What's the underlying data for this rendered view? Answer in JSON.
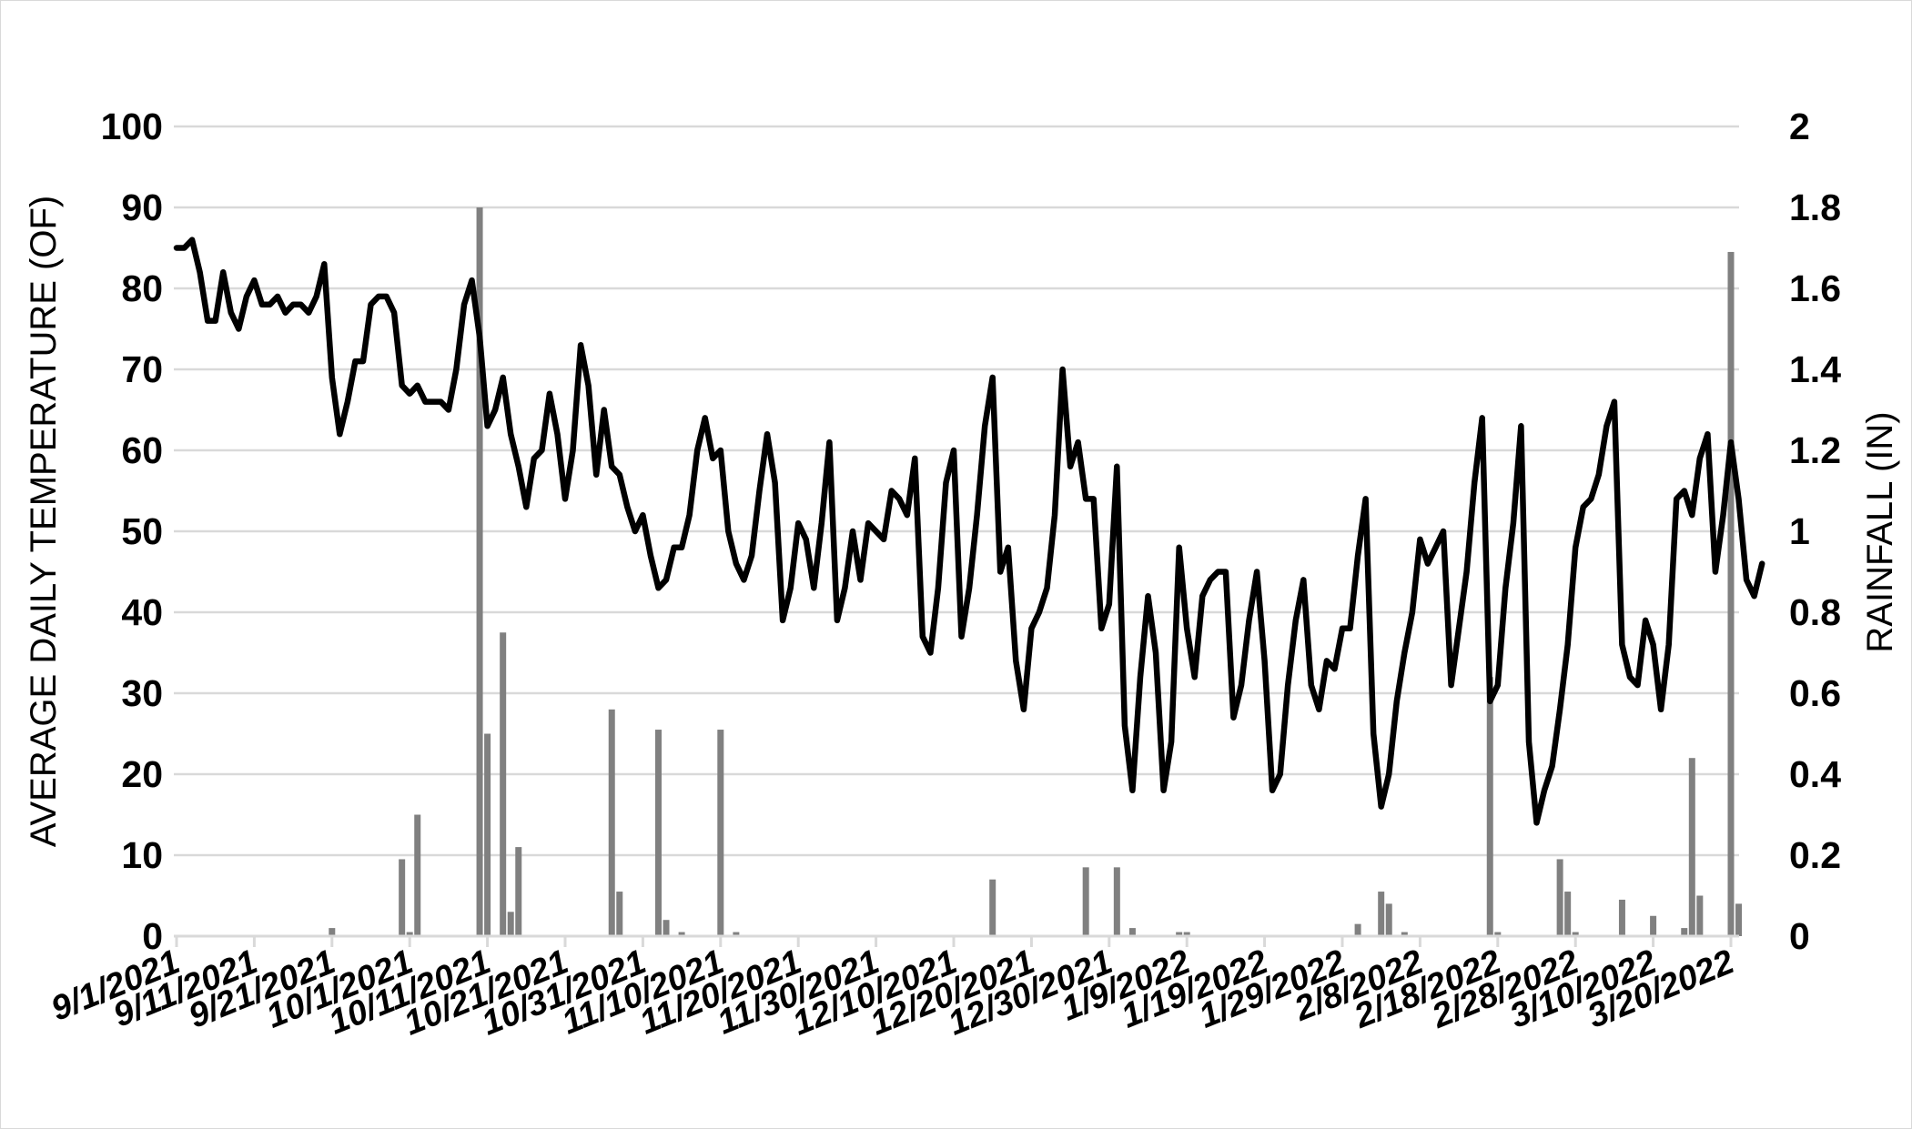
{
  "chart_data": {
    "type": "line",
    "title": "",
    "ylabel": "AVERAGE DAILY TEMPERATURE (OF)",
    "y2label": "RAINFALL (IN)",
    "ylim": [
      0,
      100
    ],
    "y2lim": [
      0,
      2
    ],
    "yticks": [
      "0",
      "10",
      "20",
      "30",
      "40",
      "50",
      "60",
      "70",
      "80",
      "90",
      "100"
    ],
    "y2ticks": [
      "0",
      "0.2",
      "0.4",
      "0.6",
      "0.8",
      "1",
      "1.2",
      "1.4",
      "1.6",
      "1.8",
      "2"
    ],
    "xticks": [
      "9/1/2021",
      "9/11/2021",
      "9/21/2021",
      "10/1/2021",
      "10/11/2021",
      "10/21/2021",
      "10/31/2021",
      "11/10/2021",
      "11/20/2021",
      "11/30/2021",
      "12/10/2021",
      "12/20/2021",
      "12/30/2021",
      "1/9/2022",
      "1/19/2022",
      "1/29/2022",
      "2/8/2022",
      "2/18/2022",
      "2/28/2022",
      "3/10/2022",
      "3/20/2022"
    ],
    "grid": true,
    "colors": {
      "temperature": "#000000",
      "rainfall": "#808080",
      "grid": "#d9d9d9"
    },
    "series": [
      {
        "type": "line",
        "axis": "left",
        "values": [
          85,
          85,
          86,
          82,
          76,
          76,
          82,
          77,
          75,
          79,
          81,
          78,
          78,
          79,
          77,
          78,
          78,
          77,
          79,
          83,
          69,
          62,
          66,
          71,
          71,
          78,
          79,
          79,
          77,
          68,
          67,
          68,
          66,
          66,
          66,
          65,
          70,
          78,
          81,
          74,
          63,
          65,
          69,
          62,
          58,
          53,
          59,
          60,
          67,
          62,
          54,
          60,
          73,
          68,
          57,
          65,
          58,
          57,
          53,
          50,
          52,
          47,
          43,
          44,
          48,
          48,
          52,
          60,
          64,
          59,
          60,
          50,
          46,
          44,
          47,
          55,
          62,
          56,
          39,
          43,
          51,
          49,
          43,
          51,
          61,
          39,
          43,
          50,
          44,
          51,
          50,
          49,
          55,
          54,
          52,
          59,
          37,
          35,
          43,
          56,
          60,
          37,
          43,
          52,
          63,
          69,
          45,
          48,
          34,
          28,
          38,
          40,
          43,
          52,
          70,
          58,
          61,
          54,
          54,
          38,
          41,
          58,
          26,
          18,
          32,
          42,
          35,
          18,
          24,
          48,
          38,
          32,
          42,
          44,
          45,
          45,
          27,
          31,
          39,
          45,
          34,
          18,
          20,
          31,
          39,
          44,
          31,
          28,
          34,
          33,
          38,
          38,
          47,
          54,
          25,
          16,
          20,
          29,
          35,
          40,
          49,
          46,
          48,
          50,
          31,
          38,
          45,
          56,
          64,
          29,
          31,
          43,
          51,
          63,
          24,
          14,
          18,
          21,
          28,
          36,
          48,
          53,
          54,
          57,
          63,
          66,
          36,
          32,
          31,
          39,
          36,
          28,
          36,
          54,
          55,
          52,
          59,
          62,
          45,
          52,
          61,
          54,
          44,
          42,
          46
        ]
      },
      {
        "type": "bar",
        "axis": "right",
        "start_day": 0,
        "points": [
          [
            20,
            0.02
          ],
          [
            29,
            0.19
          ],
          [
            30,
            0.01
          ],
          [
            31,
            0.3
          ],
          [
            39,
            1.8
          ],
          [
            40,
            0.5
          ],
          [
            42,
            0.75
          ],
          [
            43,
            0.06
          ],
          [
            44,
            0.22
          ],
          [
            56,
            0.56
          ],
          [
            57,
            0.11
          ],
          [
            62,
            0.51
          ],
          [
            63,
            0.04
          ],
          [
            65,
            0.01
          ],
          [
            70,
            0.51
          ],
          [
            72,
            0.01
          ],
          [
            105,
            0.14
          ],
          [
            117,
            0.17
          ],
          [
            121,
            0.17
          ],
          [
            123,
            0.02
          ],
          [
            129,
            0.01
          ],
          [
            130,
            0.01
          ],
          [
            152,
            0.03
          ],
          [
            155,
            0.11
          ],
          [
            156,
            0.08
          ],
          [
            158,
            0.01
          ],
          [
            169,
            0.64
          ],
          [
            170,
            0.01
          ],
          [
            178,
            0.19
          ],
          [
            179,
            0.11
          ],
          [
            180,
            0.01
          ],
          [
            186,
            0.09
          ],
          [
            190,
            0.05
          ],
          [
            194,
            0.02
          ],
          [
            195,
            0.44
          ],
          [
            196,
            0.1
          ],
          [
            200,
            1.69
          ],
          [
            201,
            0.08
          ]
        ]
      }
    ]
  }
}
